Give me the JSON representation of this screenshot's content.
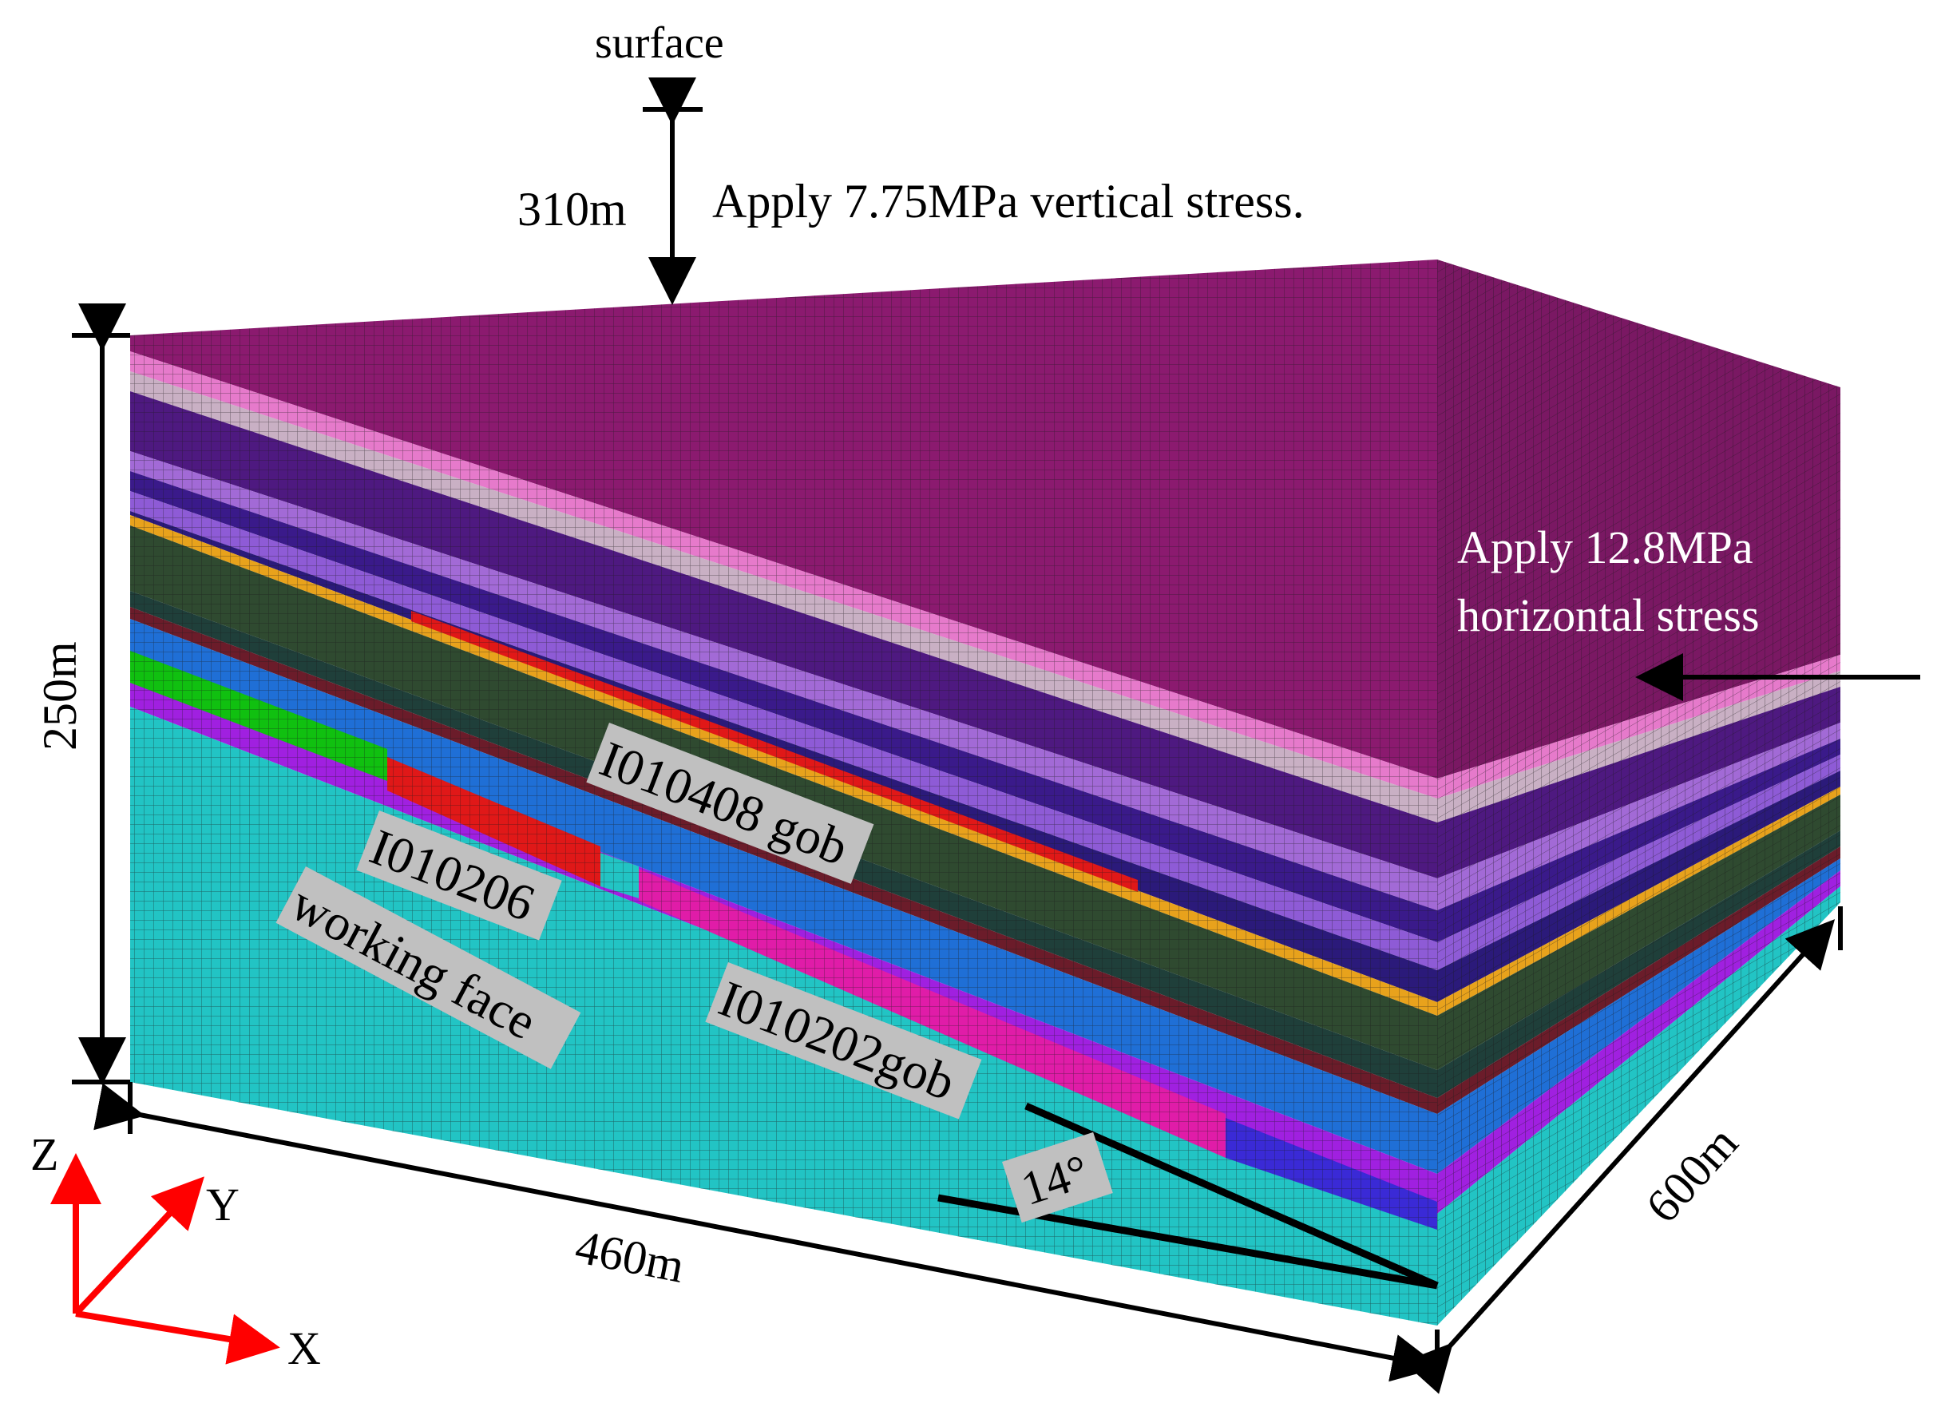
{
  "labels": {
    "surface": "surface",
    "depth": "310m",
    "vertical_stress": "Apply 7.75MPa vertical stress.",
    "height": "250m",
    "horizontal_stress_line1": "Apply 12.8MPa",
    "horizontal_stress_line2": "horizontal stress",
    "length": "460m",
    "width": "600m",
    "angle": "14°"
  },
  "tags": {
    "gob_upper": "I010408 gob",
    "working_face_id": "I010206",
    "working_face": "working face",
    "gob_lower": "I010202gob"
  },
  "axes": {
    "z": "Z",
    "y": "Y",
    "x": "X"
  },
  "colors": {
    "top_block": "#8b1a6f",
    "grid_line": "#1a1a1a",
    "base_cyan": "#22c4c4",
    "arrow_red": "#ff0000",
    "tag_bg": "#c0c0c0",
    "strata": [
      "#8b1a6f",
      "#e67acb",
      "#c9b0c4",
      "#4e1980",
      "#a26ad6",
      "#3a1a8a",
      "#8e5bd6",
      "#2b1a7a",
      "#e8a21c",
      "#2f4a30",
      "#1f3f3a",
      "#6b1c2a",
      "#1f6fd6",
      "#2f7ae0",
      "#a020e0"
    ]
  }
}
